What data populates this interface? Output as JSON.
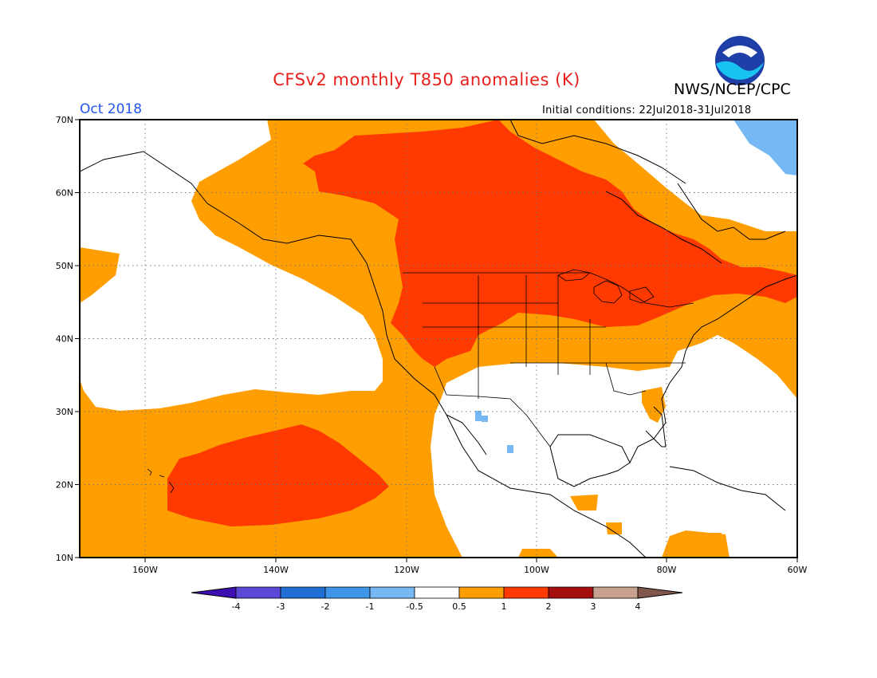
{
  "header": {
    "title": "CFSv2 monthly T850 anomalies (K)",
    "agency": "NWS/NCEP/CPC",
    "valid_month": "Oct 2018",
    "initial_conditions": "Initial conditions: 22Jul2018-31Jul2018"
  },
  "map": {
    "lat_labels": [
      "70N",
      "60N",
      "50N",
      "40N",
      "30N",
      "20N",
      "10N"
    ],
    "lon_labels": [
      "160W",
      "140W",
      "120W",
      "100W",
      "80W",
      "60W"
    ],
    "lat_range": [
      10,
      70
    ],
    "lon_range": [
      -170,
      -60
    ],
    "gridlines": "dotted"
  },
  "legend": {
    "labels": [
      "-4",
      "-3",
      "-2",
      "-1",
      "-0.5",
      "0.5",
      "1",
      "2",
      "3",
      "4"
    ],
    "colors": [
      "#3d0fb0",
      "#5a48d6",
      "#1f6fd4",
      "#3f95e8",
      "#76b8f3",
      "#ffffff",
      "#ff9e00",
      "#ff3a00",
      "#a50e0e",
      "#c8a08e",
      "#80574a"
    ]
  },
  "colors": {
    "ocean_base": "#ff9e00",
    "strong_positive": "#ff3a00",
    "neutral": "#ffffff",
    "weak_negative": "#76b8f3"
  },
  "logo_icon": "noaa-logo-icon"
}
